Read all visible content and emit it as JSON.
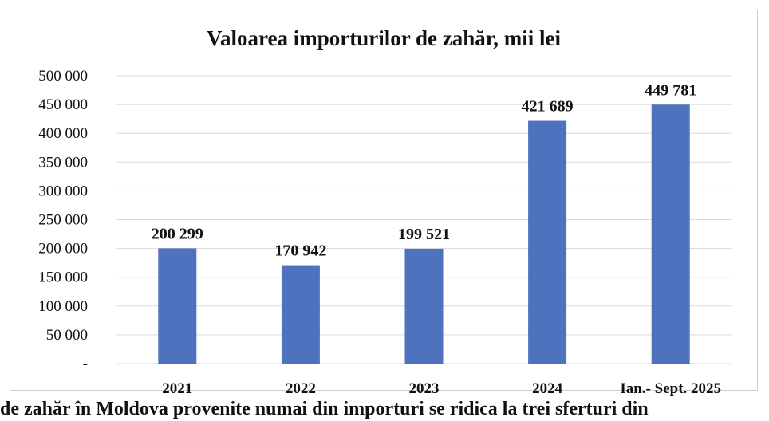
{
  "chart_data": {
    "type": "bar",
    "title": "Valoarea importurilor de zahăr, mii lei",
    "xlabel": "",
    "ylabel": "",
    "categories": [
      "2021",
      "2022",
      "2023",
      "2024",
      "Ian.- Sept. 2025"
    ],
    "values": [
      200299,
      170942,
      199521,
      421689,
      449781
    ],
    "data_labels": [
      "200 299",
      "170 942",
      "199 521",
      "421 689",
      "449 781"
    ],
    "ylim": [
      0,
      500000
    ],
    "yticks": [
      0,
      50000,
      100000,
      150000,
      200000,
      250000,
      300000,
      350000,
      400000,
      450000,
      500000
    ],
    "ytick_labels": [
      "-",
      "50 000",
      "100 000",
      "150 000",
      "200 000",
      "250 000",
      "300 000",
      "350 000",
      "400 000",
      "450 000",
      "500 000"
    ],
    "grid": true,
    "legend": "none",
    "bar_color": "#4f72be",
    "grid_color": "#d9d9d9"
  },
  "footer": {
    "text": "de zahăr în Moldova provenite numai din importuri se ridica la trei sferturi din"
  }
}
